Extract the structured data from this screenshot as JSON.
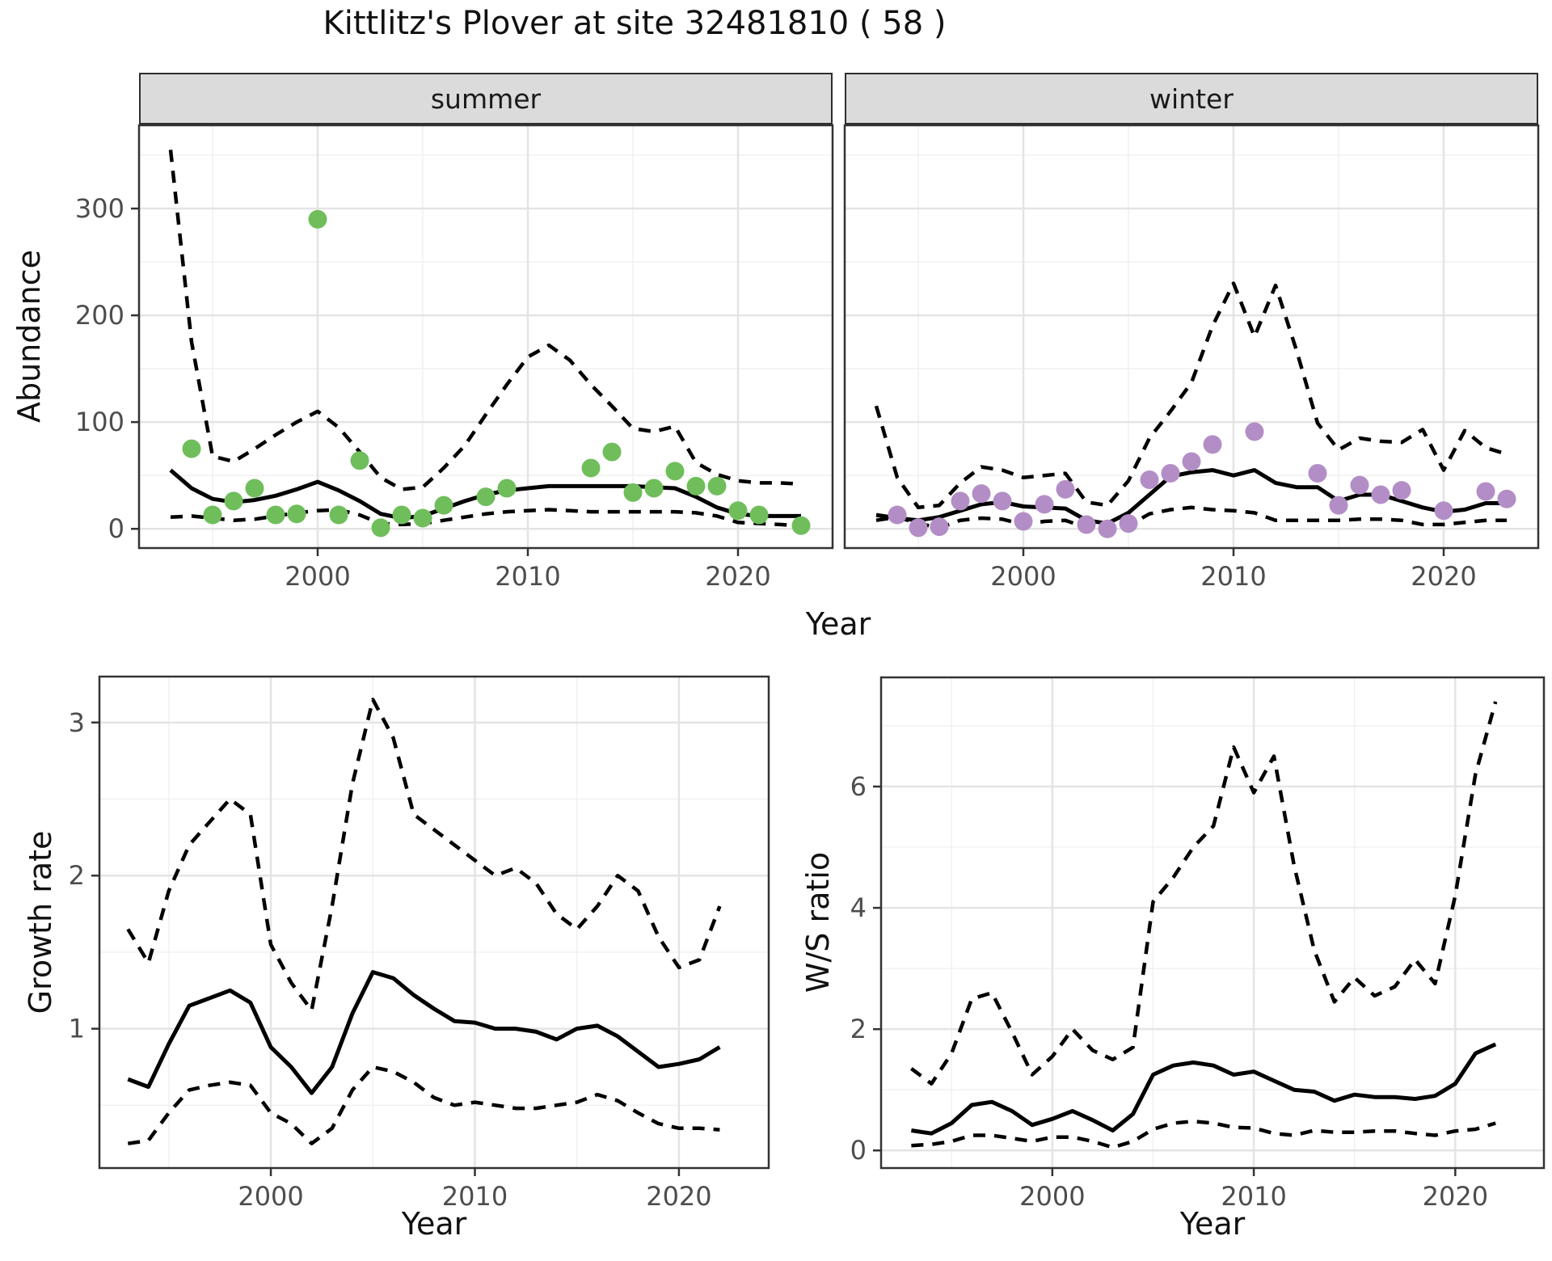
{
  "title": "Kittlitz's Plover at site 32481810 ( 58 )",
  "colors": {
    "summer_point": "#6FBE5B",
    "winter_point": "#B38EC6",
    "line": "#000000",
    "grid_major": "#E4E4E4",
    "grid_minor": "#F0F0F0",
    "strip_bg": "#DBDBDB",
    "panel_border": "#333333",
    "tick_label": "#4D4D4D"
  },
  "chart_data": [
    {
      "type": "scatter",
      "facet": "summer",
      "xlabel": "Year",
      "ylabel": "Abundance",
      "xlim": [
        1991.5,
        2024.5
      ],
      "ylim": [
        -18,
        378
      ],
      "xticks": [
        2000,
        2010,
        2020
      ],
      "xminor": [
        1995,
        2005,
        2015
      ],
      "yticks": [
        0,
        100,
        200,
        300
      ],
      "yminor": [
        50,
        150,
        250,
        350
      ],
      "point_color": "#6FBE5B",
      "points": {
        "years": [
          1994,
          1995,
          1996,
          1997,
          1998,
          1999,
          2000,
          2001,
          2002,
          2003,
          2004,
          2005,
          2006,
          2008,
          2009,
          2013,
          2014,
          2015,
          2016,
          2017,
          2018,
          2019,
          2020,
          2021,
          2023
        ],
        "values": [
          75,
          13,
          26,
          38,
          13,
          14,
          290,
          13,
          64,
          1,
          13,
          10,
          22,
          30,
          38,
          57,
          72,
          34,
          38,
          54,
          40,
          40,
          17,
          13,
          3
        ]
      },
      "fit": {
        "year_start": 1993,
        "values": [
          55,
          38,
          28,
          25,
          27,
          31,
          37,
          44,
          36,
          26,
          14,
          10,
          12,
          19,
          26,
          32,
          36,
          38,
          40,
          40,
          40,
          40,
          40,
          39,
          38,
          30,
          20,
          14,
          12,
          12,
          12
        ]
      },
      "hi": {
        "year_start": 1993,
        "values": [
          355,
          175,
          68,
          63,
          75,
          88,
          100,
          110,
          95,
          72,
          48,
          37,
          39,
          57,
          78,
          107,
          135,
          161,
          172,
          158,
          135,
          115,
          94,
          91,
          96,
          62,
          51,
          45,
          43,
          43,
          42
        ]
      },
      "lo": {
        "year_start": 1993,
        "values": [
          11,
          12,
          10,
          8,
          9,
          12,
          15,
          17,
          18,
          13,
          5,
          4,
          5,
          8,
          11,
          14,
          16,
          17,
          18,
          17,
          16,
          16,
          16,
          16,
          16,
          15,
          12,
          6,
          5,
          4,
          3
        ]
      }
    },
    {
      "type": "scatter",
      "facet": "winter",
      "xlabel": "Year",
      "ylabel": "Abundance",
      "xlim": [
        1991.5,
        2024.5
      ],
      "ylim": [
        -18,
        378
      ],
      "xticks": [
        2000,
        2010,
        2020
      ],
      "xminor": [
        1995,
        2005,
        2015
      ],
      "yticks": [
        0,
        100,
        200,
        300
      ],
      "yminor": [
        50,
        150,
        250,
        350
      ],
      "point_color": "#B38EC6",
      "points": {
        "years": [
          1994,
          1995,
          1996,
          1997,
          1998,
          1999,
          2000,
          2001,
          2002,
          2003,
          2004,
          2005,
          2006,
          2007,
          2008,
          2009,
          2011,
          2014,
          2015,
          2016,
          2017,
          2018,
          2020,
          2022,
          2023
        ],
        "values": [
          13,
          1,
          2,
          26,
          33,
          26,
          7,
          23,
          37,
          4,
          0,
          5,
          46,
          52,
          63,
          79,
          91,
          52,
          22,
          41,
          32,
          36,
          17,
          35,
          28
        ]
      },
      "fit": {
        "year_start": 1993,
        "values": [
          13,
          10,
          8,
          11,
          17,
          23,
          25,
          21,
          20,
          19,
          8,
          5,
          15,
          32,
          49,
          53,
          55,
          50,
          55,
          43,
          39,
          39,
          26,
          32,
          32,
          26,
          20,
          16,
          18,
          24,
          24
        ]
      },
      "hi": {
        "year_start": 1993,
        "values": [
          115,
          48,
          20,
          22,
          43,
          58,
          55,
          48,
          50,
          52,
          25,
          22,
          45,
          85,
          110,
          137,
          190,
          230,
          180,
          228,
          167,
          99,
          74,
          85,
          82,
          81,
          93,
          55,
          92,
          76,
          70
        ]
      },
      "lo": {
        "year_start": 1993,
        "values": [
          8,
          11,
          5,
          1,
          8,
          10,
          9,
          4,
          7,
          8,
          1,
          1,
          3,
          14,
          18,
          20,
          18,
          17,
          15,
          8,
          8,
          8,
          8,
          9,
          9,
          8,
          4,
          4,
          6,
          8,
          8
        ]
      }
    },
    {
      "type": "line",
      "facet": null,
      "xlabel": "Year",
      "ylabel": "Growth rate",
      "xlim": [
        1991.6,
        2024.4
      ],
      "ylim": [
        0.09,
        3.3
      ],
      "xticks": [
        2000,
        2010,
        2020
      ],
      "xminor": [
        1995,
        2005,
        2015
      ],
      "yticks": [
        1,
        2,
        3
      ],
      "yminor": [
        0.5,
        1.5,
        2.5
      ],
      "fit": {
        "year_start": 1993,
        "values": [
          0.67,
          0.62,
          0.9,
          1.15,
          1.2,
          1.25,
          1.17,
          0.88,
          0.75,
          0.58,
          0.75,
          1.1,
          1.37,
          1.33,
          1.22,
          1.13,
          1.05,
          1.04,
          1.0,
          1.0,
          0.98,
          0.93,
          1.0,
          1.02,
          0.95,
          0.85,
          0.75,
          0.77,
          0.8,
          0.88
        ]
      },
      "hi": {
        "year_start": 1993,
        "values": [
          1.65,
          1.43,
          1.9,
          2.2,
          2.35,
          2.5,
          2.4,
          1.55,
          1.3,
          1.12,
          1.8,
          2.6,
          3.15,
          2.9,
          2.4,
          2.3,
          2.2,
          2.1,
          2.0,
          2.05,
          1.95,
          1.75,
          1.65,
          1.8,
          2.0,
          1.9,
          1.6,
          1.4,
          1.45,
          1.8
        ]
      },
      "lo": {
        "year_start": 1993,
        "values": [
          0.25,
          0.27,
          0.45,
          0.6,
          0.63,
          0.65,
          0.63,
          0.45,
          0.38,
          0.25,
          0.35,
          0.6,
          0.75,
          0.72,
          0.65,
          0.55,
          0.5,
          0.52,
          0.5,
          0.48,
          0.48,
          0.5,
          0.52,
          0.57,
          0.53,
          0.45,
          0.38,
          0.35,
          0.35,
          0.34
        ]
      }
    },
    {
      "type": "line",
      "facet": null,
      "xlabel": "Year",
      "ylabel": "W/S ratio",
      "xlim": [
        1991.5,
        2024.4
      ],
      "ylim": [
        -0.29,
        7.8
      ],
      "xticks": [
        2000,
        2010,
        2020
      ],
      "xminor": [
        1995,
        2005,
        2015
      ],
      "yticks": [
        0,
        2,
        4,
        6
      ],
      "yminor": [
        1,
        3,
        5,
        7
      ],
      "fit": {
        "year_start": 1993,
        "values": [
          0.33,
          0.28,
          0.45,
          0.75,
          0.8,
          0.65,
          0.42,
          0.52,
          0.65,
          0.5,
          0.33,
          0.6,
          1.25,
          1.4,
          1.45,
          1.4,
          1.25,
          1.3,
          1.15,
          1.0,
          0.97,
          0.82,
          0.92,
          0.88,
          0.88,
          0.85,
          0.9,
          1.1,
          1.6,
          1.75
        ]
      },
      "hi": {
        "year_start": 1993,
        "values": [
          1.35,
          1.1,
          1.6,
          2.5,
          2.6,
          1.95,
          1.25,
          1.55,
          2.0,
          1.65,
          1.5,
          1.7,
          4.1,
          4.5,
          5.0,
          5.35,
          6.65,
          5.9,
          6.5,
          4.7,
          3.3,
          2.45,
          2.85,
          2.55,
          2.7,
          3.15,
          2.75,
          4.2,
          6.2,
          7.4
        ]
      },
      "lo": {
        "year_start": 1993,
        "values": [
          0.08,
          0.1,
          0.15,
          0.25,
          0.25,
          0.2,
          0.15,
          0.22,
          0.22,
          0.15,
          0.05,
          0.15,
          0.35,
          0.45,
          0.48,
          0.45,
          0.38,
          0.37,
          0.28,
          0.25,
          0.33,
          0.3,
          0.3,
          0.32,
          0.32,
          0.28,
          0.25,
          0.32,
          0.35,
          0.45
        ]
      }
    }
  ]
}
